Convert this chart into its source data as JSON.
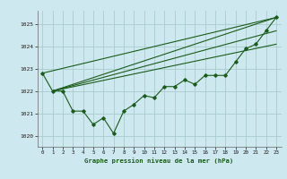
{
  "background_color": "#cde8ee",
  "grid_color": "#aacccc",
  "line_color": "#1a5c1a",
  "title": "Graphe pression niveau de la mer (hPa)",
  "xlim": [
    -0.5,
    23.5
  ],
  "ylim": [
    1019.5,
    1025.6
  ],
  "yticks": [
    1020,
    1021,
    1022,
    1023,
    1024,
    1025
  ],
  "xticks": [
    0,
    1,
    2,
    3,
    4,
    5,
    6,
    7,
    8,
    9,
    10,
    11,
    12,
    13,
    14,
    15,
    16,
    17,
    18,
    19,
    20,
    21,
    22,
    23
  ],
  "series": {
    "main": [
      [
        0,
        1022.8
      ],
      [
        1,
        1022.0
      ],
      [
        2,
        1022.0
      ],
      [
        3,
        1021.1
      ],
      [
        4,
        1021.1
      ],
      [
        5,
        1020.5
      ],
      [
        6,
        1020.8
      ],
      [
        7,
        1020.1
      ],
      [
        8,
        1021.1
      ],
      [
        9,
        1021.4
      ],
      [
        10,
        1021.8
      ],
      [
        11,
        1021.7
      ],
      [
        12,
        1022.2
      ],
      [
        13,
        1022.2
      ],
      [
        14,
        1022.5
      ],
      [
        15,
        1022.3
      ],
      [
        16,
        1022.7
      ],
      [
        17,
        1022.7
      ],
      [
        18,
        1022.7
      ],
      [
        19,
        1023.3
      ],
      [
        20,
        1023.9
      ],
      [
        21,
        1024.1
      ],
      [
        22,
        1024.7
      ],
      [
        23,
        1025.3
      ]
    ],
    "envelope": [
      [
        [
          0,
          1022.8
        ],
        [
          23,
          1025.3
        ]
      ],
      [
        [
          1,
          1022.0
        ],
        [
          23,
          1025.3
        ]
      ],
      [
        [
          1,
          1022.0
        ],
        [
          23,
          1024.7
        ]
      ],
      [
        [
          1,
          1022.0
        ],
        [
          23,
          1024.1
        ]
      ]
    ]
  }
}
